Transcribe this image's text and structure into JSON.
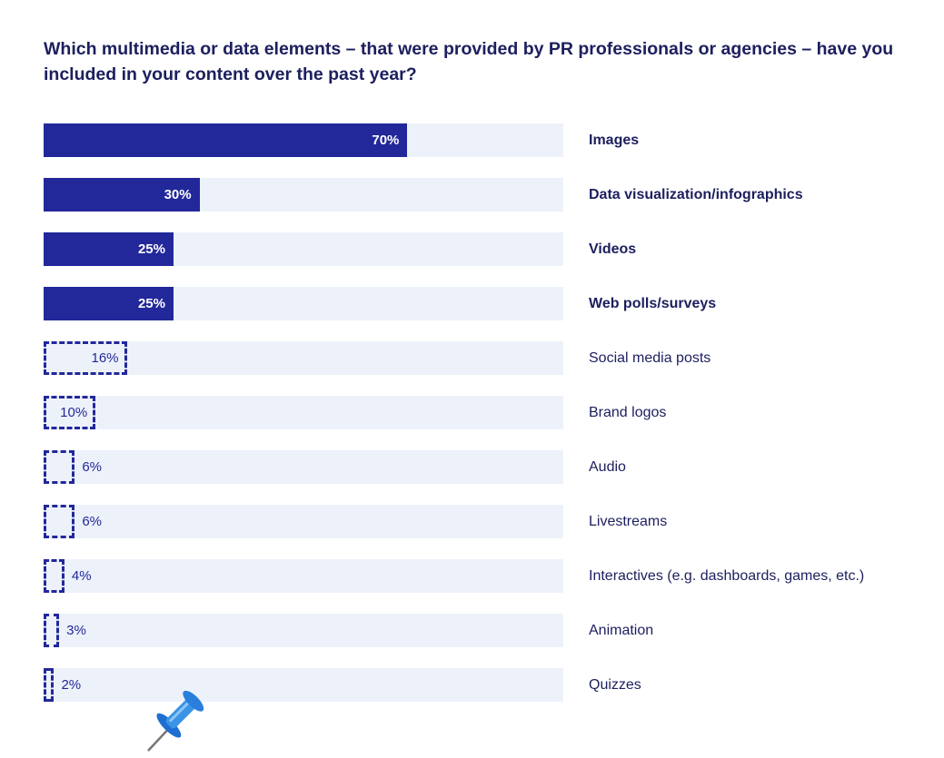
{
  "chart_data": {
    "type": "bar",
    "orientation": "horizontal",
    "title": "Which multimedia or data elements – that were provided by PR professionals or agencies – have you included in your content over the past year?",
    "categories": [
      "Images",
      "Data visualization/infographics",
      "Videos",
      "Web polls/surveys",
      "Social media posts",
      "Brand logos",
      "Audio",
      "Livestreams",
      "Interactives (e.g. dashboards, games, etc.)",
      "Animation",
      "Quizzes"
    ],
    "values": [
      70,
      30,
      25,
      25,
      16,
      10,
      6,
      6,
      4,
      3,
      2
    ],
    "value_labels": [
      "70%",
      "30%",
      "25%",
      "25%",
      "16%",
      "10%",
      "6%",
      "6%",
      "4%",
      "3%",
      "2%"
    ],
    "highlighted": [
      true,
      true,
      true,
      true,
      false,
      false,
      false,
      false,
      false,
      false,
      false
    ],
    "xlim": [
      0,
      100
    ],
    "unit": "%",
    "colors": {
      "bar": "#22289a",
      "track": "#edf2fa",
      "text": "#1c1f5e"
    }
  },
  "decoration": {
    "icon": "pushpin-icon"
  }
}
